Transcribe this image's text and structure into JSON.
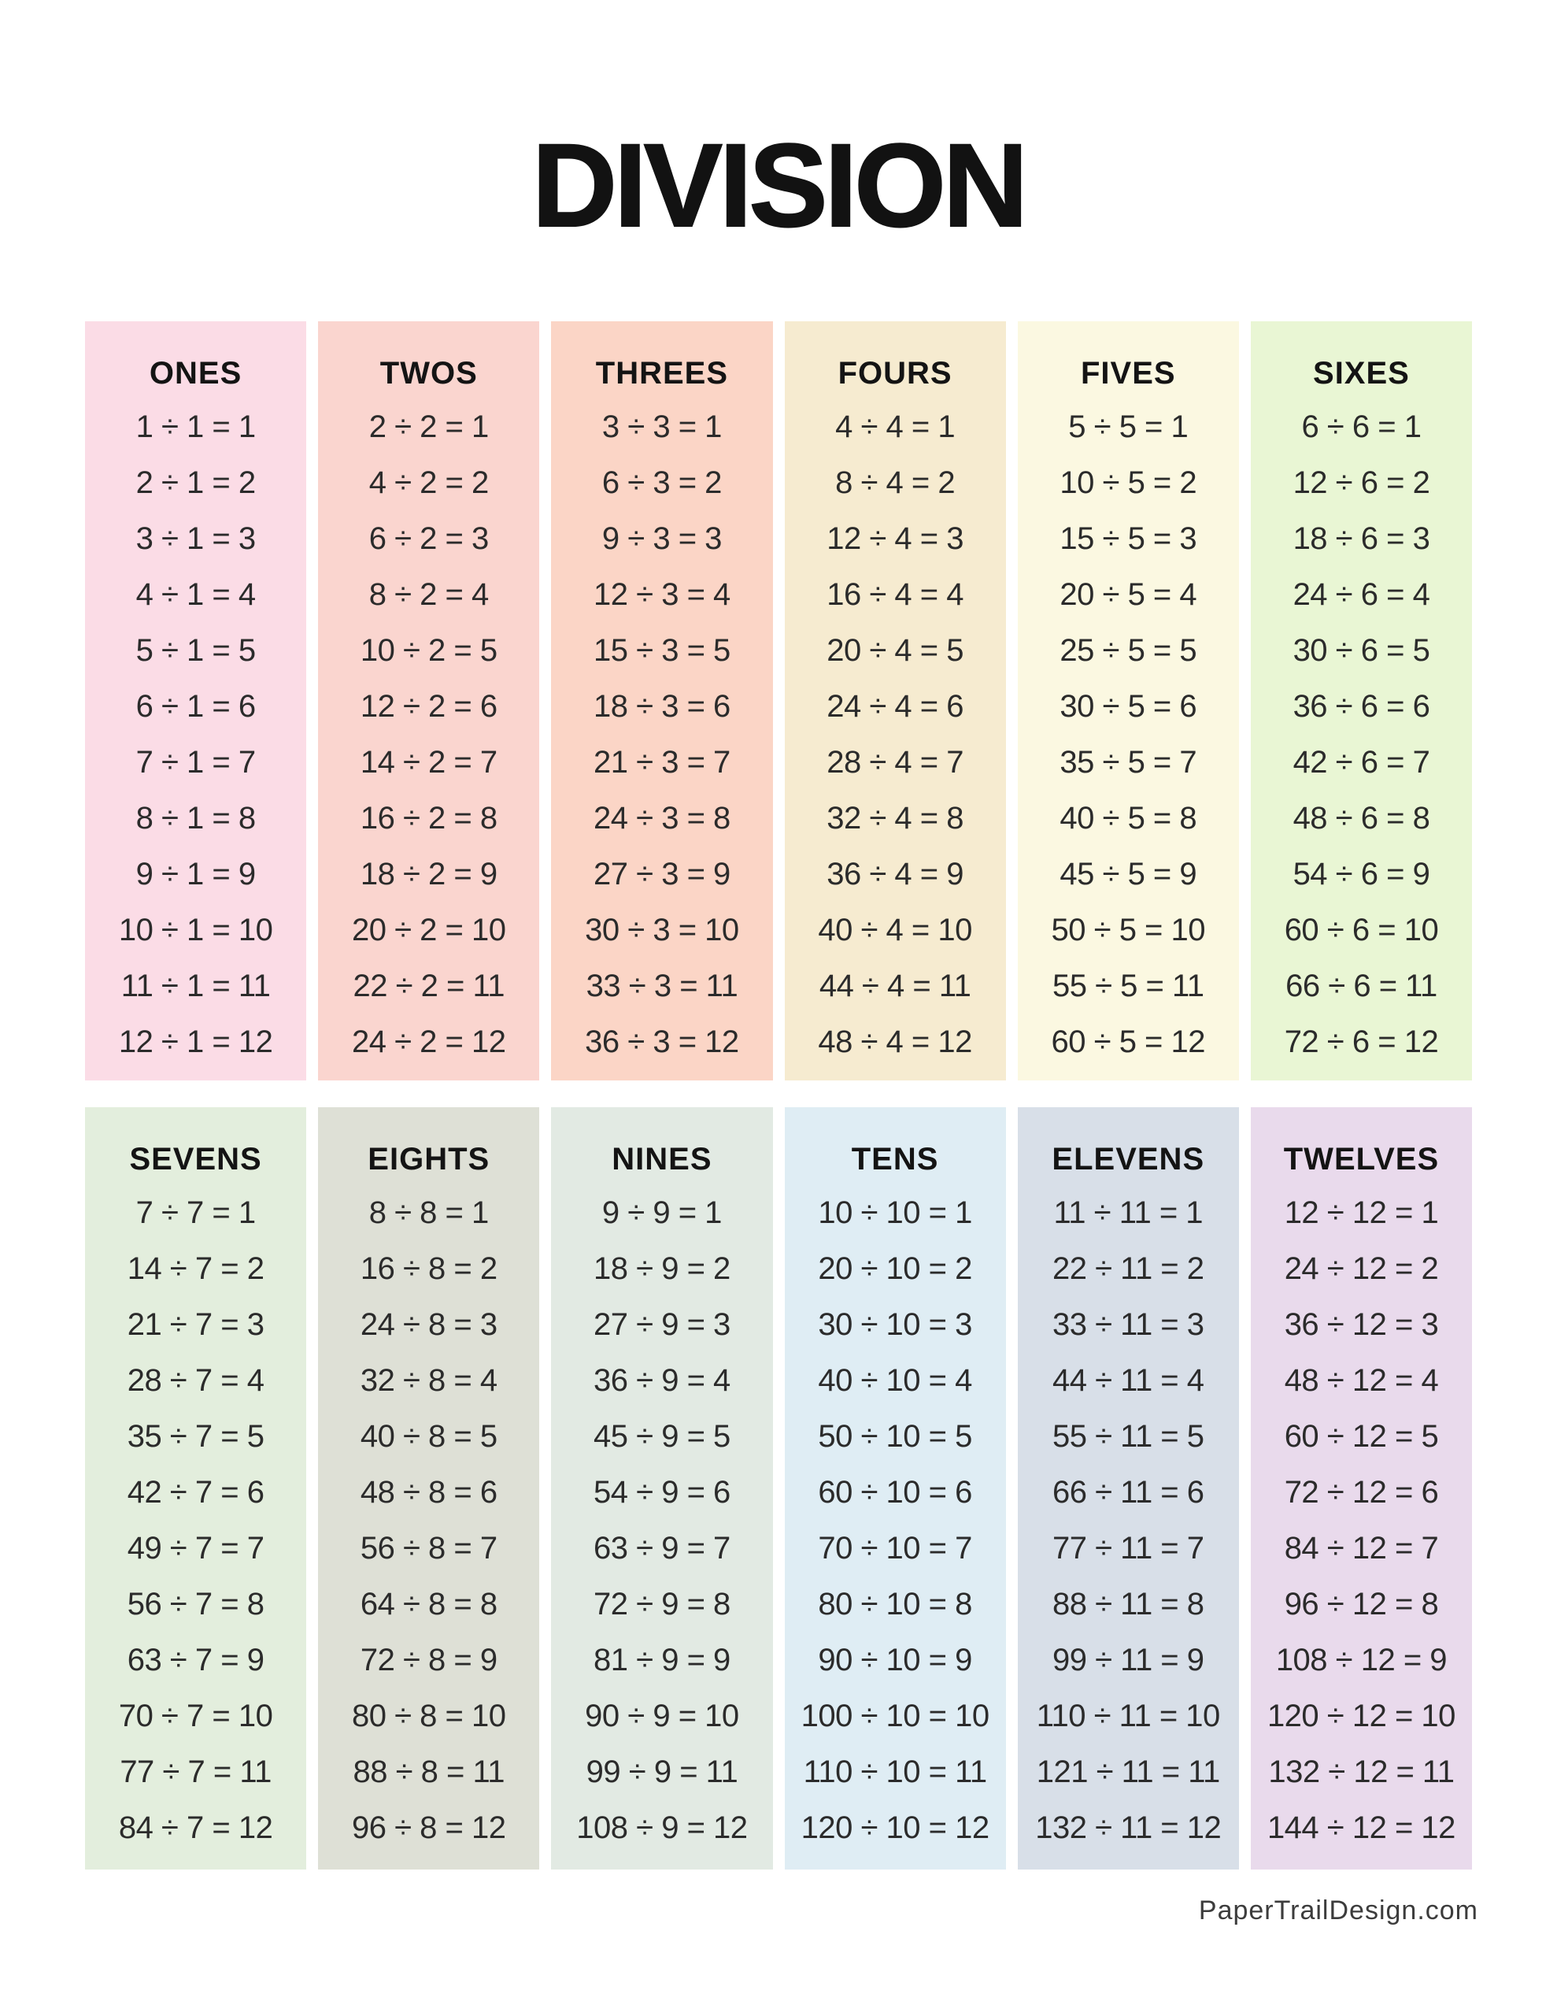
{
  "title": "DIVISION",
  "footer": "PaperTrailDesign.com",
  "colors": {
    "page_bg": "#ffffff",
    "title_text": "#121212",
    "fact_text": "#2b2b2b",
    "footer_text": "#3c3c3c"
  },
  "sections": [
    {
      "name": "top",
      "columns": [
        {
          "label": "ONES",
          "bg": "#fbdce6",
          "facts": [
            "1 ÷ 1 = 1",
            "2 ÷ 1 = 2",
            "3 ÷ 1 = 3",
            "4 ÷ 1 = 4",
            "5 ÷ 1 = 5",
            "6 ÷ 1 = 6",
            "7 ÷ 1 = 7",
            "8 ÷ 1 = 8",
            "9 ÷ 1 = 9",
            "10 ÷ 1 = 10",
            "11 ÷ 1 = 11",
            "12 ÷ 1 = 12"
          ]
        },
        {
          "label": "TWOS",
          "bg": "#fad5cf",
          "facts": [
            "2 ÷ 2 = 1",
            "4 ÷ 2 = 2",
            "6 ÷ 2 = 3",
            "8 ÷ 2 = 4",
            "10 ÷ 2 = 5",
            "12 ÷ 2 = 6",
            "14 ÷ 2 = 7",
            "16 ÷ 2 = 8",
            "18 ÷ 2 = 9",
            "20 ÷ 2 = 10",
            "22 ÷ 2 = 11",
            "24 ÷ 2 = 12"
          ]
        },
        {
          "label": "THREES",
          "bg": "#fbd5c6",
          "facts": [
            "3 ÷ 3 = 1",
            "6 ÷ 3 = 2",
            "9 ÷ 3 = 3",
            "12 ÷ 3 = 4",
            "15 ÷ 3 = 5",
            "18 ÷ 3 = 6",
            "21 ÷ 3 = 7",
            "24 ÷ 3 = 8",
            "27 ÷ 3 = 9",
            "30 ÷ 3 = 10",
            "33 ÷ 3 = 11",
            "36 ÷ 3 = 12"
          ]
        },
        {
          "label": "FOURS",
          "bg": "#f6ebd0",
          "facts": [
            "4 ÷ 4 = 1",
            "8 ÷ 4 = 2",
            "12 ÷ 4 = 3",
            "16 ÷ 4 = 4",
            "20 ÷ 4 = 5",
            "24 ÷ 4 = 6",
            "28 ÷ 4 = 7",
            "32 ÷ 4 = 8",
            "36 ÷ 4 = 9",
            "40 ÷ 4 = 10",
            "44 ÷ 4 = 11",
            "48 ÷ 4 = 12"
          ]
        },
        {
          "label": "FIVES",
          "bg": "#fbf8e1",
          "facts": [
            "5 ÷ 5 = 1",
            "10 ÷ 5 = 2",
            "15 ÷ 5 = 3",
            "20 ÷ 5 = 4",
            "25 ÷ 5 = 5",
            "30 ÷ 5 = 6",
            "35 ÷ 5 = 7",
            "40 ÷ 5 = 8",
            "45 ÷ 5 = 9",
            "50 ÷ 5 = 10",
            "55 ÷ 5 = 11",
            "60 ÷ 5 = 12"
          ]
        },
        {
          "label": "SIXES",
          "bg": "#e9f6d4",
          "facts": [
            "6 ÷ 6 = 1",
            "12 ÷ 6 = 2",
            "18 ÷ 6 = 3",
            "24 ÷ 6 = 4",
            "30 ÷ 6 = 5",
            "36 ÷ 6 = 6",
            "42 ÷ 6 = 7",
            "48 ÷ 6 = 8",
            "54 ÷ 6 = 9",
            "60 ÷ 6 = 10",
            "66 ÷ 6 = 11",
            "72 ÷ 6 = 12"
          ]
        }
      ]
    },
    {
      "name": "bottom",
      "columns": [
        {
          "label": "SEVENS",
          "bg": "#e3eedd",
          "facts": [
            "7 ÷ 7 = 1",
            "14 ÷ 7 = 2",
            "21 ÷ 7 = 3",
            "28 ÷ 7 = 4",
            "35 ÷ 7 = 5",
            "42 ÷ 7 = 6",
            "49 ÷ 7 = 7",
            "56 ÷ 7 = 8",
            "63 ÷ 7 = 9",
            "70 ÷ 7 = 10",
            "77 ÷ 7 = 11",
            "84 ÷ 7 = 12"
          ]
        },
        {
          "label": "EIGHTS",
          "bg": "#dee0d6",
          "facts": [
            "8 ÷ 8 = 1",
            "16 ÷ 8 = 2",
            "24 ÷ 8 = 3",
            "32 ÷ 8 = 4",
            "40 ÷ 8 = 5",
            "48 ÷ 8 = 6",
            "56 ÷ 8 = 7",
            "64 ÷ 8 = 8",
            "72 ÷ 8 = 9",
            "80 ÷ 8 = 10",
            "88 ÷ 8 = 11",
            "96 ÷ 8 = 12"
          ]
        },
        {
          "label": "NINES",
          "bg": "#e2eae3",
          "facts": [
            "9 ÷ 9 = 1",
            "18 ÷ 9 = 2",
            "27 ÷ 9 = 3",
            "36 ÷ 9 = 4",
            "45 ÷ 9 = 5",
            "54 ÷ 9 = 6",
            "63 ÷ 9 = 7",
            "72 ÷ 9 = 8",
            "81 ÷ 9 = 9",
            "90 ÷ 9 = 10",
            "99 ÷ 9 = 11",
            "108 ÷ 9 = 12"
          ]
        },
        {
          "label": "TENS",
          "bg": "#dfedf4",
          "facts": [
            "10 ÷ 10 = 1",
            "20 ÷ 10 = 2",
            "30 ÷ 10 = 3",
            "40 ÷ 10 = 4",
            "50 ÷ 10 = 5",
            "60 ÷ 10 = 6",
            "70 ÷ 10 = 7",
            "80 ÷ 10 = 8",
            "90 ÷ 10 = 9",
            "100 ÷ 10 = 10",
            "110 ÷ 10 = 11",
            "120 ÷ 10 = 12"
          ]
        },
        {
          "label": "ELEVENS",
          "bg": "#d8dfe8",
          "facts": [
            "11 ÷ 11 = 1",
            "22 ÷ 11 = 2",
            "33 ÷ 11 = 3",
            "44 ÷ 11 = 4",
            "55 ÷ 11 = 5",
            "66 ÷ 11 = 6",
            "77 ÷ 11 = 7",
            "88 ÷ 11 = 8",
            "99 ÷ 11 = 9",
            "110 ÷ 11 = 10",
            "121 ÷ 11 = 11",
            "132 ÷ 11 = 12"
          ]
        },
        {
          "label": "TWELVES",
          "bg": "#e9daec",
          "facts": [
            "12 ÷ 12 = 1",
            "24 ÷ 12 = 2",
            "36 ÷ 12 = 3",
            "48 ÷ 12 = 4",
            "60 ÷ 12 = 5",
            "72 ÷ 12 = 6",
            "84 ÷ 12 = 7",
            "96 ÷ 12 = 8",
            "108 ÷ 12 = 9",
            "120 ÷ 12 = 10",
            "132 ÷ 12 = 11",
            "144 ÷ 12 = 12"
          ]
        }
      ]
    }
  ]
}
